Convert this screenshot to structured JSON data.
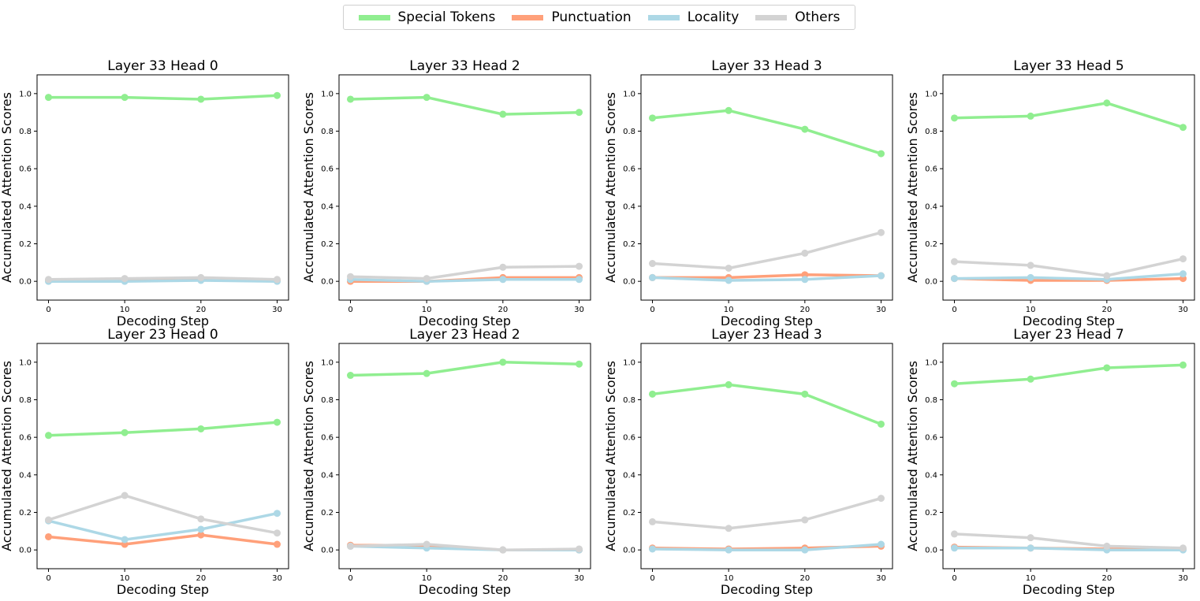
{
  "legend": {
    "items": [
      {
        "label": "Special Tokens",
        "color": "#90ee90"
      },
      {
        "label": "Punctuation",
        "color": "#ffa07a"
      },
      {
        "label": "Locality",
        "color": "#add8e6"
      },
      {
        "label": "Others",
        "color": "#d3d3d3"
      }
    ]
  },
  "chart_data": [
    {
      "type": "line",
      "title": "Layer 33 Head 0",
      "xlabel": "Decoding Step",
      "ylabel": "Accumulated Attention Scores",
      "x": [
        0,
        10,
        20,
        30
      ],
      "xticks": [
        "0",
        "10",
        "20",
        "30"
      ],
      "yticks": [
        "0.0",
        "0.2",
        "0.4",
        "0.6",
        "0.8",
        "1.0"
      ],
      "ylim": [
        -0.1,
        1.1
      ],
      "series": [
        {
          "name": "Special Tokens",
          "values": [
            0.98,
            0.98,
            0.97,
            0.99
          ]
        },
        {
          "name": "Punctuation",
          "values": [
            0.005,
            0.005,
            0.01,
            0.005
          ]
        },
        {
          "name": "Locality",
          "values": [
            0.0,
            0.0,
            0.005,
            0.0
          ]
        },
        {
          "name": "Others",
          "values": [
            0.01,
            0.015,
            0.02,
            0.01
          ]
        }
      ]
    },
    {
      "type": "line",
      "title": "Layer 33 Head 2",
      "xlabel": "Decoding Step",
      "ylabel": "Accumulated Attention Scores",
      "x": [
        0,
        10,
        20,
        30
      ],
      "xticks": [
        "0",
        "10",
        "20",
        "30"
      ],
      "yticks": [
        "0.0",
        "0.2",
        "0.4",
        "0.6",
        "0.8",
        "1.0"
      ],
      "ylim": [
        -0.1,
        1.1
      ],
      "series": [
        {
          "name": "Special Tokens",
          "values": [
            0.97,
            0.98,
            0.89,
            0.9
          ]
        },
        {
          "name": "Punctuation",
          "values": [
            0.0,
            0.0,
            0.02,
            0.02
          ]
        },
        {
          "name": "Locality",
          "values": [
            0.01,
            0.0,
            0.01,
            0.01
          ]
        },
        {
          "name": "Others",
          "values": [
            0.025,
            0.015,
            0.075,
            0.08
          ]
        }
      ]
    },
    {
      "type": "line",
      "title": "Layer 33 Head 3",
      "xlabel": "Decoding Step",
      "ylabel": "Accumulated Attention Scores",
      "x": [
        0,
        10,
        20,
        30
      ],
      "xticks": [
        "0",
        "10",
        "20",
        "30"
      ],
      "yticks": [
        "0.0",
        "0.2",
        "0.4",
        "0.6",
        "0.8",
        "1.0"
      ],
      "ylim": [
        -0.1,
        1.1
      ],
      "series": [
        {
          "name": "Special Tokens",
          "values": [
            0.87,
            0.91,
            0.81,
            0.68
          ]
        },
        {
          "name": "Punctuation",
          "values": [
            0.02,
            0.02,
            0.035,
            0.03
          ]
        },
        {
          "name": "Locality",
          "values": [
            0.02,
            0.005,
            0.01,
            0.03
          ]
        },
        {
          "name": "Others",
          "values": [
            0.095,
            0.07,
            0.15,
            0.26
          ]
        }
      ]
    },
    {
      "type": "line",
      "title": "Layer 33 Head 5",
      "xlabel": "Decoding Step",
      "ylabel": "Accumulated Attention Scores",
      "x": [
        0,
        10,
        20,
        30
      ],
      "xticks": [
        "0",
        "10",
        "20",
        "30"
      ],
      "yticks": [
        "0.0",
        "0.2",
        "0.4",
        "0.6",
        "0.8",
        "1.0"
      ],
      "ylim": [
        -0.1,
        1.1
      ],
      "series": [
        {
          "name": "Special Tokens",
          "values": [
            0.87,
            0.88,
            0.95,
            0.82
          ]
        },
        {
          "name": "Punctuation",
          "values": [
            0.015,
            0.005,
            0.005,
            0.015
          ]
        },
        {
          "name": "Locality",
          "values": [
            0.015,
            0.02,
            0.01,
            0.04
          ]
        },
        {
          "name": "Others",
          "values": [
            0.105,
            0.085,
            0.03,
            0.12
          ]
        }
      ]
    },
    {
      "type": "line",
      "title": "Layer 23 Head 0",
      "xlabel": "Decoding Step",
      "ylabel": "Accumulated Attention Scores",
      "x": [
        0,
        10,
        20,
        30
      ],
      "xticks": [
        "0",
        "10",
        "20",
        "30"
      ],
      "yticks": [
        "0.0",
        "0.2",
        "0.4",
        "0.6",
        "0.8",
        "1.0"
      ],
      "ylim": [
        -0.1,
        1.1
      ],
      "series": [
        {
          "name": "Special Tokens",
          "values": [
            0.61,
            0.625,
            0.645,
            0.68
          ]
        },
        {
          "name": "Punctuation",
          "values": [
            0.07,
            0.03,
            0.08,
            0.03
          ]
        },
        {
          "name": "Locality",
          "values": [
            0.155,
            0.055,
            0.11,
            0.195
          ]
        },
        {
          "name": "Others",
          "values": [
            0.16,
            0.29,
            0.165,
            0.09
          ]
        }
      ]
    },
    {
      "type": "line",
      "title": "Layer 23 Head 2",
      "xlabel": "Decoding Step",
      "ylabel": "Accumulated Attention Scores",
      "x": [
        0,
        10,
        20,
        30
      ],
      "xticks": [
        "0",
        "10",
        "20",
        "30"
      ],
      "yticks": [
        "0.0",
        "0.2",
        "0.4",
        "0.6",
        "0.8",
        "1.0"
      ],
      "ylim": [
        -0.1,
        1.1
      ],
      "series": [
        {
          "name": "Special Tokens",
          "values": [
            0.93,
            0.94,
            1.0,
            0.99
          ]
        },
        {
          "name": "Punctuation",
          "values": [
            0.025,
            0.025,
            0.0,
            0.0
          ]
        },
        {
          "name": "Locality",
          "values": [
            0.02,
            0.01,
            0.0,
            0.0
          ]
        },
        {
          "name": "Others",
          "values": [
            0.02,
            0.03,
            0.0,
            0.005
          ]
        }
      ]
    },
    {
      "type": "line",
      "title": "Layer 23 Head 3",
      "xlabel": "Decoding Step",
      "ylabel": "Accumulated Attention Scores",
      "x": [
        0,
        10,
        20,
        30
      ],
      "xticks": [
        "0",
        "10",
        "20",
        "30"
      ],
      "yticks": [
        "0.0",
        "0.2",
        "0.4",
        "0.6",
        "0.8",
        "1.0"
      ],
      "ylim": [
        -0.1,
        1.1
      ],
      "series": [
        {
          "name": "Special Tokens",
          "values": [
            0.83,
            0.88,
            0.83,
            0.67
          ]
        },
        {
          "name": "Punctuation",
          "values": [
            0.01,
            0.005,
            0.01,
            0.02
          ]
        },
        {
          "name": "Locality",
          "values": [
            0.005,
            0.0,
            0.0,
            0.03
          ]
        },
        {
          "name": "Others",
          "values": [
            0.15,
            0.115,
            0.16,
            0.275
          ]
        }
      ]
    },
    {
      "type": "line",
      "title": "Layer 23 Head 7",
      "xlabel": "Decoding Step",
      "ylabel": "Accumulated Attention Scores",
      "x": [
        0,
        10,
        20,
        30
      ],
      "xticks": [
        "0",
        "10",
        "20",
        "30"
      ],
      "yticks": [
        "0.0",
        "0.2",
        "0.4",
        "0.6",
        "0.8",
        "1.0"
      ],
      "ylim": [
        -0.1,
        1.1
      ],
      "series": [
        {
          "name": "Special Tokens",
          "values": [
            0.885,
            0.91,
            0.97,
            0.985
          ]
        },
        {
          "name": "Punctuation",
          "values": [
            0.015,
            0.01,
            0.005,
            0.005
          ]
        },
        {
          "name": "Locality",
          "values": [
            0.01,
            0.01,
            0.0,
            0.0
          ]
        },
        {
          "name": "Others",
          "values": [
            0.085,
            0.065,
            0.02,
            0.01
          ]
        }
      ]
    }
  ]
}
